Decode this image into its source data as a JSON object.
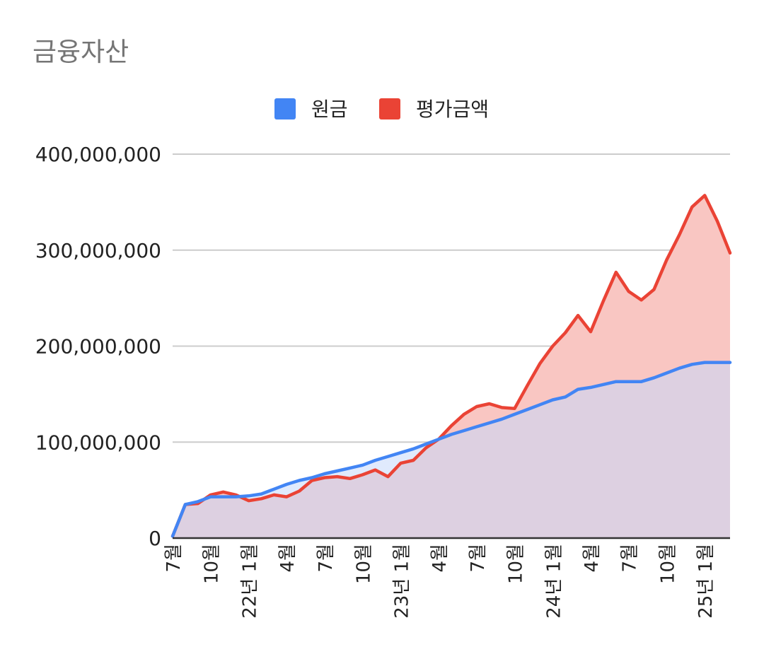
{
  "chart_data": {
    "type": "area",
    "title": "금융자산",
    "legend_position": "top",
    "grid": true,
    "ylim": [
      0,
      400000000
    ],
    "y_ticks": [
      "0",
      "100,000,000",
      "200,000,000",
      "300,000,000",
      "400,000,000"
    ],
    "x_tick_labels": [
      {
        "label": "7월",
        "index": 0
      },
      {
        "label": "10월",
        "index": 3
      },
      {
        "label": "22년 1월",
        "index": 6
      },
      {
        "label": "4월",
        "index": 9
      },
      {
        "label": "7월",
        "index": 12
      },
      {
        "label": "10월",
        "index": 15
      },
      {
        "label": "23년 1월",
        "index": 18
      },
      {
        "label": "4월",
        "index": 21
      },
      {
        "label": "7월",
        "index": 24
      },
      {
        "label": "10월",
        "index": 27
      },
      {
        "label": "24년 1월",
        "index": 30
      },
      {
        "label": "4월",
        "index": 33
      },
      {
        "label": "7월",
        "index": 36
      },
      {
        "label": "10월",
        "index": 39
      },
      {
        "label": "25년 1월",
        "index": 42
      }
    ],
    "series": [
      {
        "name": "원금",
        "color": "#4285f4",
        "fill": "#c6d9fb",
        "values": [
          2000000,
          35000000,
          38000000,
          43000000,
          43000000,
          43000000,
          44000000,
          46000000,
          51000000,
          56000000,
          60000000,
          63000000,
          67000000,
          70000000,
          73000000,
          76000000,
          81000000,
          85000000,
          89000000,
          93000000,
          98000000,
          103000000,
          108000000,
          112000000,
          116000000,
          120000000,
          124000000,
          129000000,
          134000000,
          139000000,
          144000000,
          147000000,
          155000000,
          157000000,
          160000000,
          163000000,
          163000000,
          163000000,
          167000000,
          172000000,
          177000000,
          181000000,
          183000000,
          183000000,
          183000000
        ]
      },
      {
        "name": "평가금액",
        "color": "#ea4335",
        "fill": "#f9c6c2",
        "values": [
          2000000,
          35000000,
          36000000,
          45000000,
          48000000,
          45000000,
          39000000,
          41000000,
          45000000,
          43000000,
          49000000,
          60000000,
          63000000,
          64000000,
          62000000,
          66000000,
          71000000,
          64000000,
          78000000,
          81000000,
          94000000,
          103000000,
          117000000,
          129000000,
          137000000,
          140000000,
          136000000,
          135000000,
          159000000,
          182000000,
          200000000,
          214000000,
          232000000,
          215000000,
          247000000,
          277000000,
          257000000,
          248000000,
          259000000,
          290000000,
          316000000,
          345000000,
          357000000,
          330000000,
          297000000
        ]
      }
    ]
  }
}
